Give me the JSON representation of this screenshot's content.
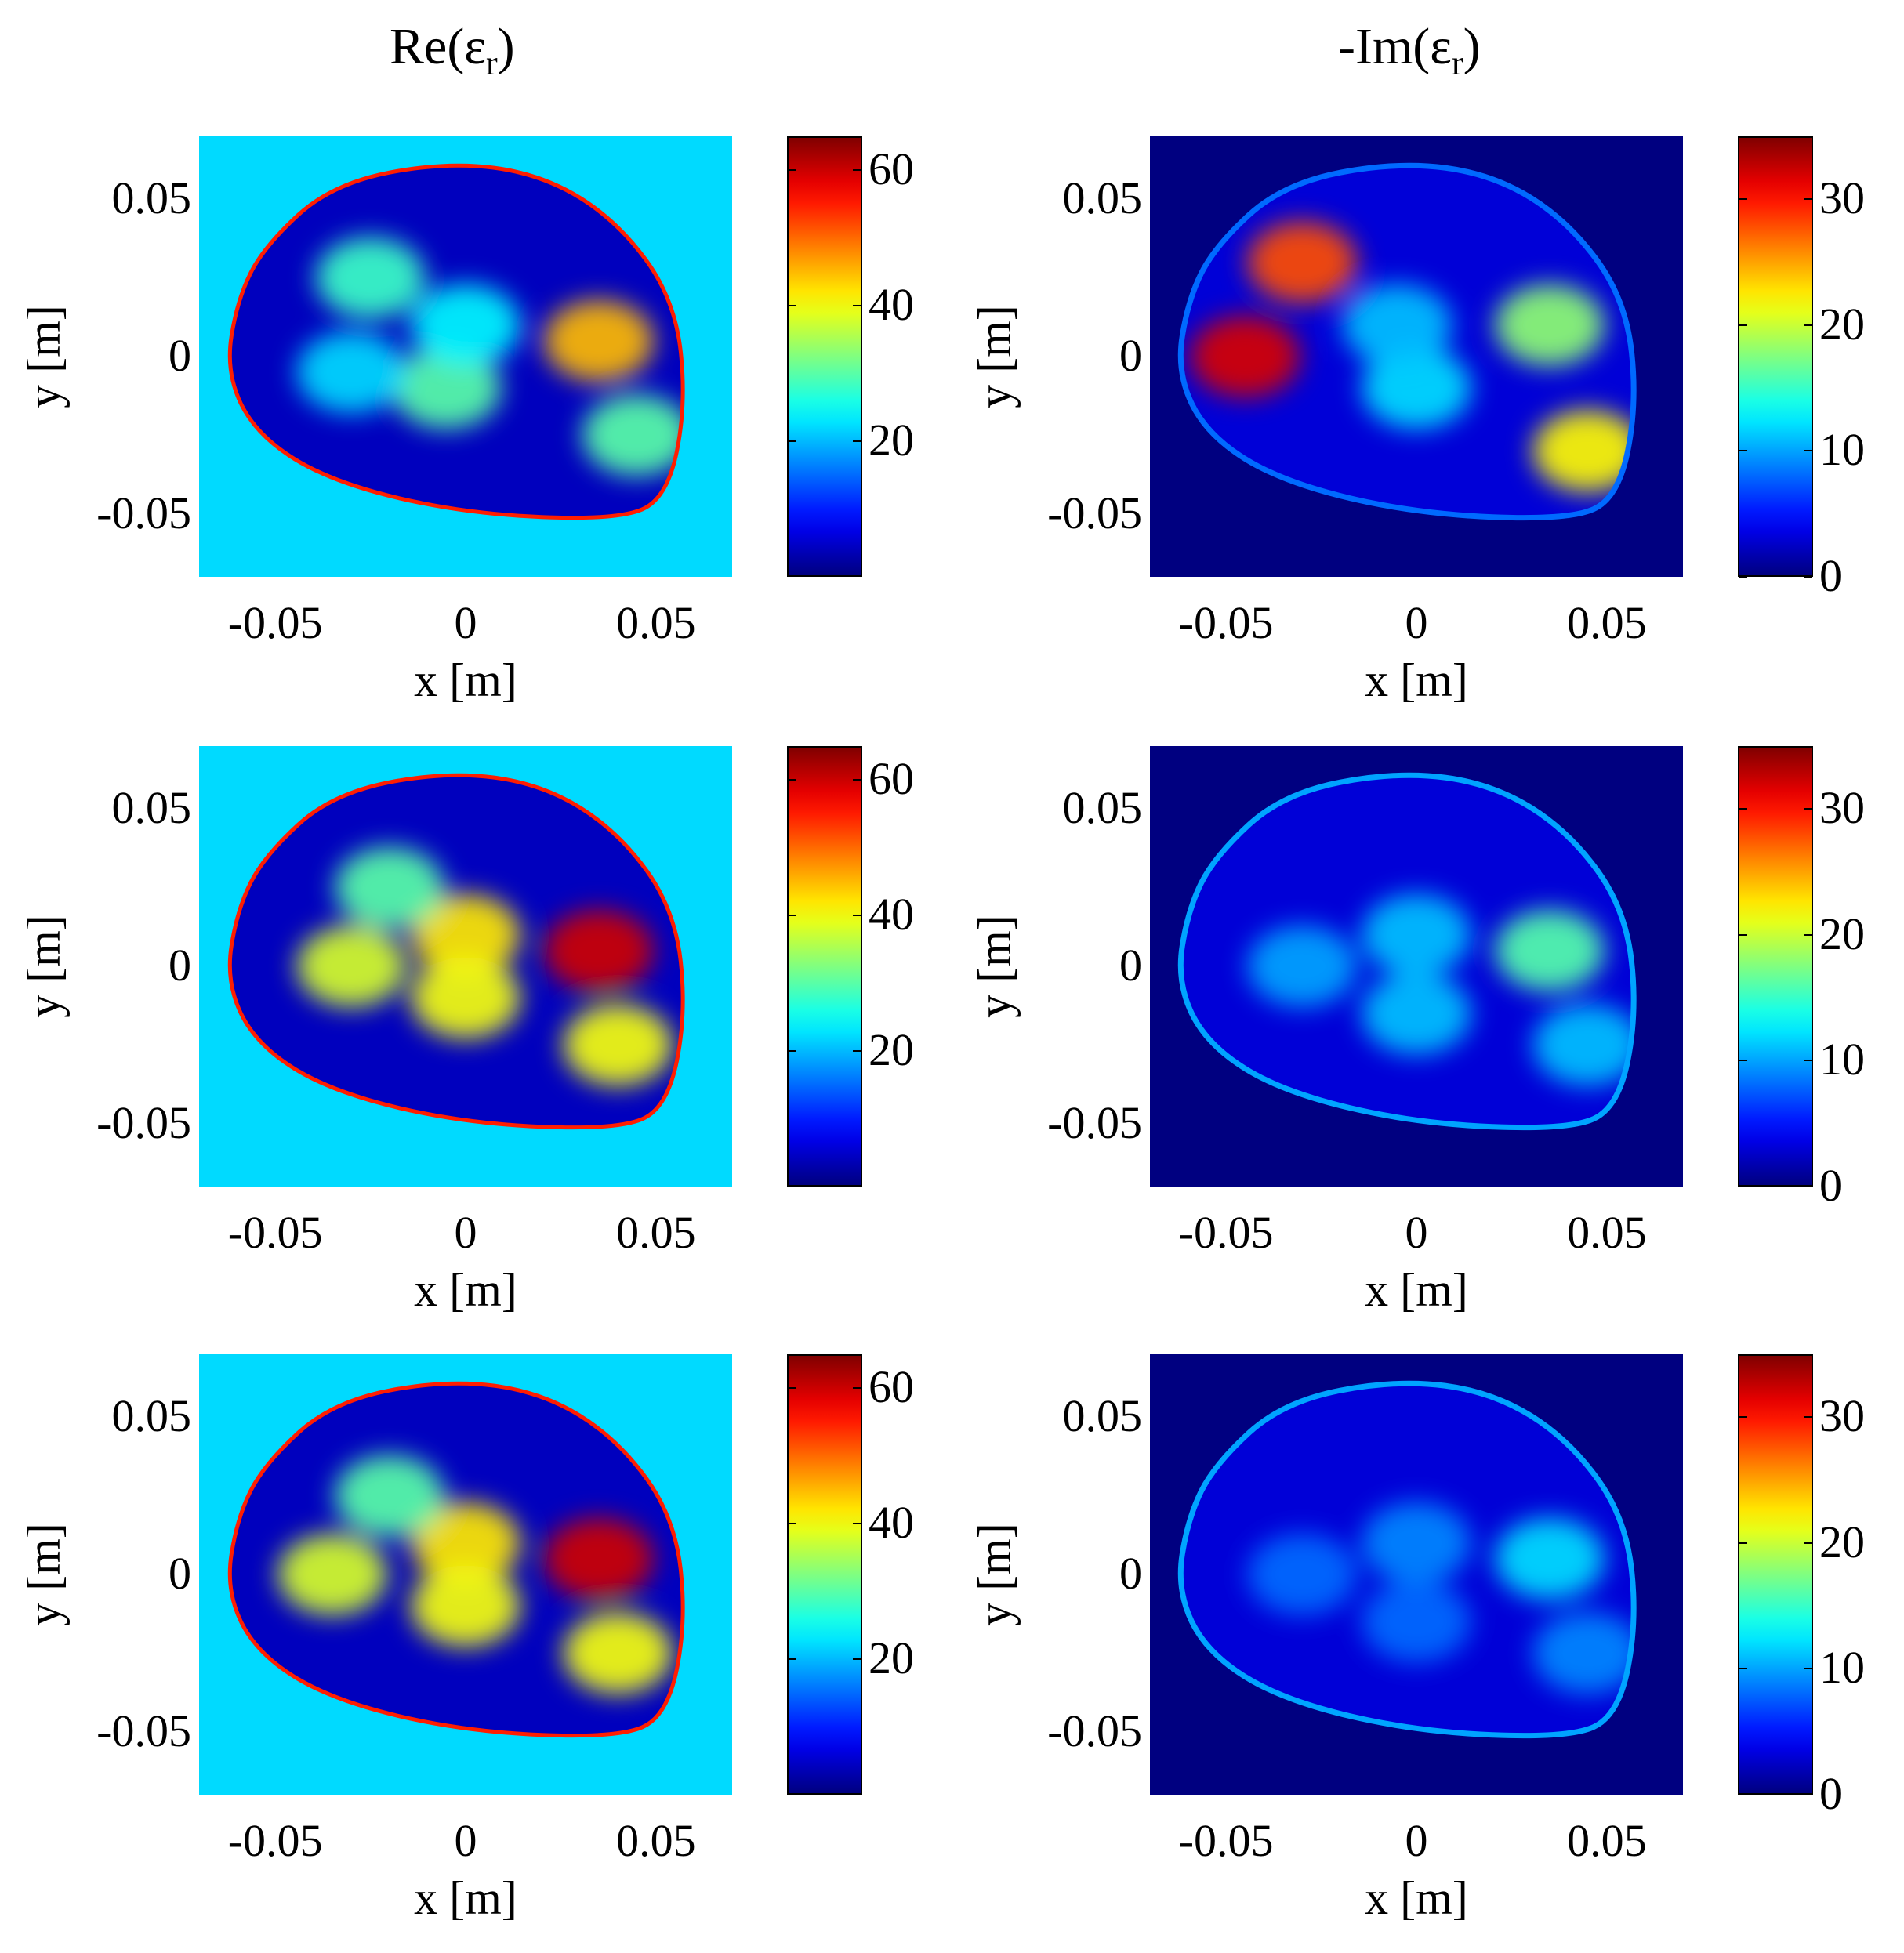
{
  "chart_data": {
    "type": "heatmap",
    "columns": [
      {
        "title_main": "Re(ε",
        "title_sub": "r",
        "title_close": ")",
        "background_value": 22,
        "colorbar_range": [
          0,
          65
        ],
        "colorbar_ticks": [
          "20",
          "40",
          "60"
        ],
        "colorbar_tick_values": [
          20,
          40,
          60
        ]
      },
      {
        "title_main": "-Im(ε",
        "title_sub": "r",
        "title_close": ")",
        "background_value": 0,
        "colorbar_range": [
          0,
          35
        ],
        "colorbar_ticks": [
          "0",
          "10",
          "20",
          "30"
        ],
        "colorbar_tick_values": [
          0,
          10,
          20,
          30
        ]
      }
    ],
    "xlabel": "x [m]",
    "ylabel": "y [m]",
    "xlim": [
      -0.07,
      0.07
    ],
    "ylim": [
      -0.07,
      0.07
    ],
    "xticks": [
      "-0.05",
      "0",
      "0.05"
    ],
    "xtick_values": [
      -0.05,
      0,
      0.05
    ],
    "yticks": [
      "0.05",
      "0",
      "-0.05"
    ],
    "ytick_values": [
      0.05,
      0,
      -0.05
    ],
    "colormap": "jet",
    "panels": [
      {
        "row": 0,
        "col": 0,
        "outline_value": 55,
        "outer_value": 4,
        "inner_blobs": [
          [
            0.035,
            0.005,
            45
          ],
          [
            -0.025,
            0.025,
            28
          ],
          [
            -0.005,
            -0.01,
            30
          ],
          [
            0.0,
            0.01,
            24
          ],
          [
            -0.03,
            -0.005,
            22
          ],
          [
            0.045,
            -0.025,
            30
          ]
        ]
      },
      {
        "row": 0,
        "col": 1,
        "outline_value": 8,
        "outer_value": 3,
        "inner_blobs": [
          [
            -0.045,
            0.0,
            32
          ],
          [
            -0.03,
            0.03,
            28
          ],
          [
            0.035,
            0.01,
            18
          ],
          [
            0.045,
            -0.03,
            22
          ],
          [
            0.0,
            -0.01,
            12
          ],
          [
            -0.005,
            0.01,
            11
          ]
        ]
      },
      {
        "row": 1,
        "col": 0,
        "outline_value": 55,
        "outer_value": 4,
        "inner_blobs": [
          [
            0.035,
            0.005,
            60
          ],
          [
            0.0,
            0.01,
            42
          ],
          [
            -0.03,
            0.0,
            38
          ],
          [
            0.0,
            -0.01,
            40
          ],
          [
            0.04,
            -0.025,
            40
          ],
          [
            -0.02,
            0.025,
            30
          ]
        ]
      },
      {
        "row": 1,
        "col": 1,
        "outline_value": 10,
        "outer_value": 3,
        "inner_blobs": [
          [
            0.035,
            0.005,
            16
          ],
          [
            0.0,
            0.01,
            11
          ],
          [
            -0.03,
            0.0,
            10
          ],
          [
            0.0,
            -0.015,
            11
          ],
          [
            0.045,
            -0.025,
            11
          ]
        ]
      },
      {
        "row": 2,
        "col": 0,
        "outline_value": 55,
        "outer_value": 4,
        "inner_blobs": [
          [
            0.035,
            0.005,
            60
          ],
          [
            0.0,
            0.01,
            42
          ],
          [
            -0.035,
            0.0,
            38
          ],
          [
            0.0,
            -0.01,
            40
          ],
          [
            0.04,
            -0.025,
            40
          ],
          [
            -0.02,
            0.025,
            30
          ]
        ]
      },
      {
        "row": 2,
        "col": 1,
        "outline_value": 10,
        "outer_value": 3,
        "inner_blobs": [
          [
            0.035,
            0.005,
            12
          ],
          [
            0.0,
            0.01,
            9
          ],
          [
            -0.03,
            0.0,
            8
          ],
          [
            0.0,
            -0.015,
            8
          ],
          [
            0.045,
            -0.025,
            9
          ]
        ]
      }
    ]
  }
}
